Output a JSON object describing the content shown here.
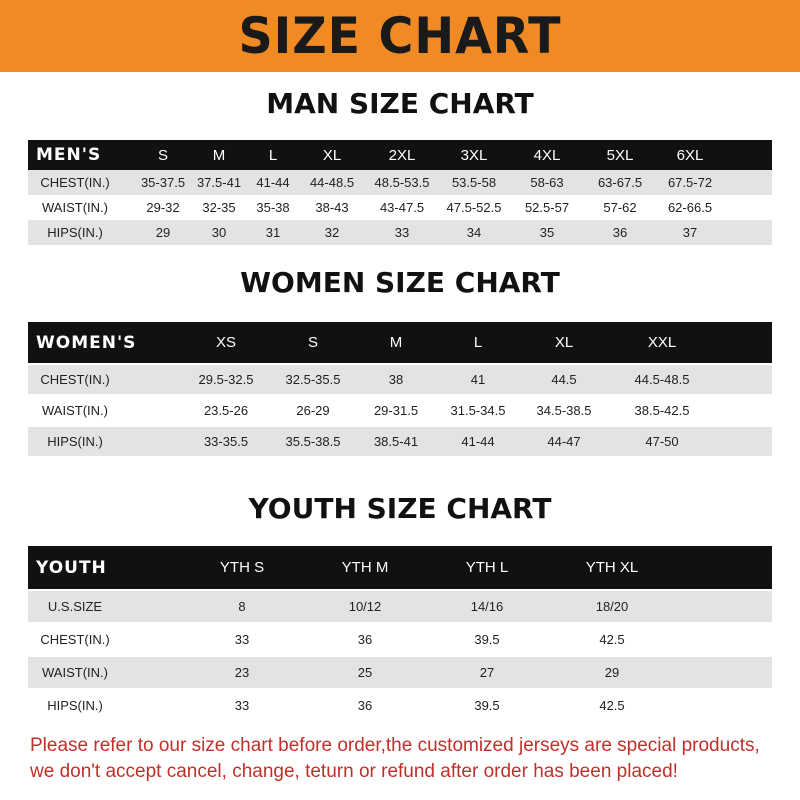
{
  "banner": {
    "title": "SIZE CHART",
    "color": "#f08a24"
  },
  "colors": {
    "header_row": "#111111",
    "stripe": "#e3e3e3",
    "note": "#c0302a"
  },
  "men": {
    "title": "MAN SIZE CHART",
    "columns": [
      "MEN'S",
      "S",
      "M",
      "L",
      "XL",
      "2XL",
      "3XL",
      "4XL",
      "5XL",
      "6XL"
    ],
    "rows": [
      [
        "CHEST(IN.)",
        "35-37.5",
        "37.5-41",
        "41-44",
        "44-48.5",
        "48.5-53.5",
        "53.5-58",
        "58-63",
        "63-67.5",
        "67.5-72"
      ],
      [
        "WAIST(IN.)",
        "29-32",
        "32-35",
        "35-38",
        "38-43",
        "43-47.5",
        "47.5-52.5",
        "52.5-57",
        "57-62",
        "62-66.5"
      ],
      [
        "HIPS(IN.)",
        "29",
        "30",
        "31",
        "32",
        "33",
        "34",
        "35",
        "36",
        "37"
      ]
    ]
  },
  "women": {
    "title": "WOMEN SIZE CHART",
    "columns": [
      "WOMEN'S",
      "XS",
      "S",
      "M",
      "L",
      "XL",
      "XXL"
    ],
    "rows": [
      [
        "CHEST(IN.)",
        "29.5-32.5",
        "32.5-35.5",
        "38",
        "41",
        "44.5",
        "44.5-48.5"
      ],
      [
        "WAIST(IN.)",
        "23.5-26",
        "26-29",
        "29-31.5",
        "31.5-34.5",
        "34.5-38.5",
        "38.5-42.5"
      ],
      [
        "HIPS(IN.)",
        "33-35.5",
        "35.5-38.5",
        "38.5-41",
        "41-44",
        "44-47",
        "47-50"
      ]
    ]
  },
  "youth": {
    "title": "YOUTH SIZE CHART",
    "columns": [
      "YOUTH",
      "YTH S",
      "YTH M",
      "YTH L",
      "YTH XL"
    ],
    "rows": [
      [
        "U.S.SIZE",
        "8",
        "10/12",
        "14/16",
        "18/20"
      ],
      [
        "CHEST(IN.)",
        "33",
        "36",
        "39.5",
        "42.5"
      ],
      [
        "WAIST(IN.)",
        "23",
        "25",
        "27",
        "29"
      ],
      [
        "HIPS(IN.)",
        "33",
        "36",
        "39.5",
        "42.5"
      ]
    ]
  },
  "note": {
    "line1": "Please refer to our size chart before order,the customized jerseys are special products,",
    "line2": "we don't accept cancel, change, teturn or refund after order has been placed!"
  }
}
